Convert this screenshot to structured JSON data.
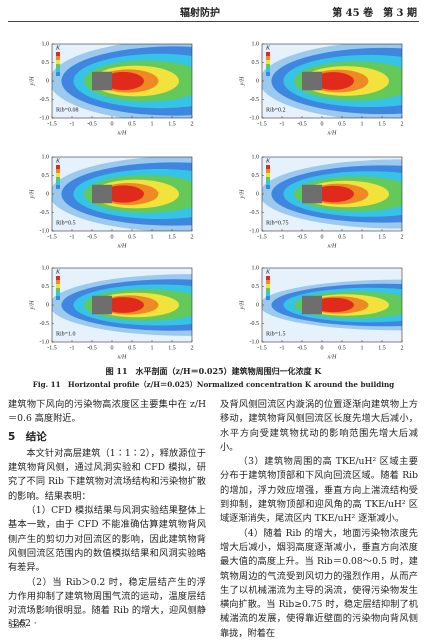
{
  "header": {
    "journal": "辐射防护",
    "issue": "第 45 卷　第 3 期"
  },
  "figure": {
    "panels": [
      {
        "label": "Rib=0.08"
      },
      {
        "label": "Rib=0.2"
      },
      {
        "label": "Rib=0.5"
      },
      {
        "label": "Rib=0.75"
      },
      {
        "label": "Rib=1.0"
      },
      {
        "label": "Rib=1.5"
      }
    ],
    "colorbar_title": "K",
    "xlabel": "x/H",
    "ylabel": "y/H",
    "xlim": [
      -1.5,
      2
    ],
    "ylim": [
      -1,
      1
    ],
    "xticks": [
      -1.5,
      -1,
      -0.5,
      0,
      0.5,
      1,
      1.5,
      2
    ],
    "yticks": [
      {
        "value": 1,
        "label": "1.0"
      },
      0.5,
      0,
      -0.5,
      {
        "value": -1,
        "label": "-1.0"
      }
    ],
    "caption_cn": "图 11　水平剖面（z/H＝0.025）建筑物周围归一化浓度 K",
    "caption_en": "Fig. 11　Horizontal profile（z/H＝0.025）Normalized concentration K around the building"
  },
  "left_column": {
    "p0": "建筑物下风向的污染物高浓度区主要集中在 z/H＝0.6 高度附近。",
    "heading": "5　结论",
    "p1": "本文针对高层建筑（1∶1∶2），释放源位于建筑物背风侧，通过风洞实验和 CFD 模拟，研究了不同 Rib 下建筑物对流场结构和污染物扩散的影响。结果表明：",
    "p2": "（1）CFD 模拟结果与风洞实验结果整体上基本一致，由于 CFD 不能准确估算建筑物背风侧产生的剪切力对回流区的影响，因此建筑物背风侧回流区范围内的数值模拟结果和风洞实验略有差异。",
    "p3": "（2）当 Rib＞0.2 时，稳定层结产生的浮力作用抑制了建筑物周围气流的运动，温度层结对流场影响很明显。随着 Rib 的增大，迎风侧静驻点"
  },
  "right_column": {
    "p0": "及背风侧回流区内漩涡的位置逐渐向建筑物上方移动，建筑物背风侧回流区长度先增大后减小，水平方向受建筑物扰动的影响范围先增大后减小。",
    "p1": "（3）建筑物周围的高 TKE/uH² 区域主要分布于建筑物顶部和下风向回流区域。随着 Rib 的增加，浮力效应增强，垂直方向上湍流结构受到抑制，建筑物顶部和迎风角的高 TKE/uH² 区域逐渐消失，尾流区内 TKE/uH² 逐渐减小。",
    "p2": "（4）随着 Rib 的增大，地面污染物浓度先增大后减小，烟羽高度逐渐减小，垂直方向浓度最大值的高度上升。当 Rib＝0.08～0.5 时，建筑物周边的气流受到风切力的强烈作用，从而产生了以机械湍流为主导的涡流，使得污染物发生横向扩散。当 Rib≥0.75 时，稳定层结抑制了机械湍流的发展，使得靠近壁面的污染物向背风侧靠拢，附着在"
  },
  "footer": {
    "page": "· 262 ·"
  }
}
